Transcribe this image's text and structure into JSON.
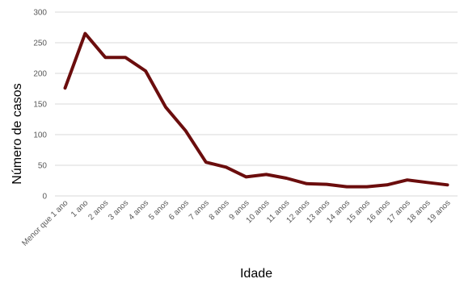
{
  "chart_data": {
    "type": "line",
    "title": "",
    "xlabel": "Idade",
    "ylabel": "Número de casos",
    "ylim": [
      0,
      300
    ],
    "yticks": [
      0,
      50,
      100,
      150,
      200,
      250,
      300
    ],
    "grid": true,
    "legend": "none",
    "categories": [
      "Menor que 1 ano",
      "1 ano",
      "2 anos",
      "3 anos",
      "4 anos",
      "5 anos",
      "6 anos",
      "7 anos",
      "8 anos",
      "9 anos",
      "10 anos",
      "11 anos",
      "12 anos",
      "13 anos",
      "14 anos",
      "15 anos",
      "16 anos",
      "17 anos",
      "18 anos",
      "19 anos"
    ],
    "series": [
      {
        "color": "#6b0d0d",
        "values": [
          176,
          265,
          226,
          226,
          204,
          145,
          106,
          55,
          47,
          31,
          35,
          29,
          20,
          19,
          15,
          15,
          18,
          26,
          22,
          18
        ]
      }
    ]
  }
}
